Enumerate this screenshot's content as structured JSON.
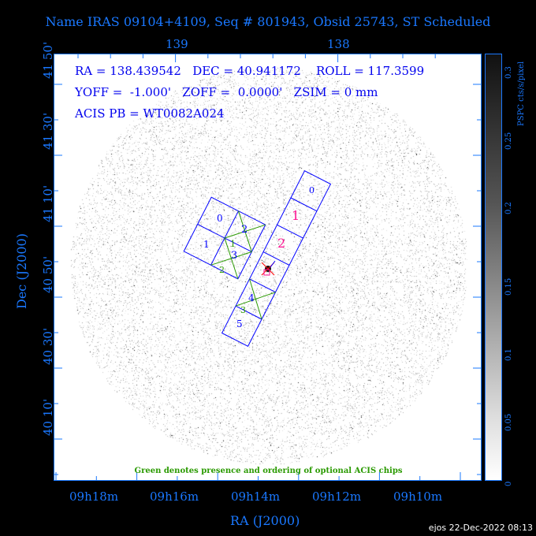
{
  "title": "Name IRAS 09104+4109, Seq # 801943, Obsid 25743, ST Scheduled",
  "info": {
    "line1": "RA = 138.439542   DEC = 40.941172    ROLL = 117.3599",
    "line2": "YOFF =  -1.000'   ZOFF =  0.0000'   ZSIM = 0 mm",
    "line3": "ACIS PB = WT0082A024"
  },
  "top_axis_labels": [
    "139",
    "138"
  ],
  "bottom_axis_labels": [
    "09h18m",
    "09h16m",
    "09h14m",
    "09h12m",
    "09h10m"
  ],
  "left_axis_labels": [
    "41 50'",
    "41 30'",
    "41 10'",
    "40 50'",
    "40 30'",
    "40 10'"
  ],
  "xlabel": "RA (J2000)",
  "ylabel": "Dec (J2000)",
  "colorbar": {
    "label": "PSPC cts/s/pixel",
    "ticks": [
      "0",
      "0.05",
      "0.1",
      "0.15",
      "0.2",
      "0.25",
      "0.3"
    ]
  },
  "chips": {
    "acis_i": [
      "0",
      "1",
      "2",
      "3"
    ],
    "acis_i_optional": [
      "1",
      "2"
    ],
    "acis_s": [
      "0",
      "1",
      "2",
      "",
      "4",
      "5"
    ],
    "acis_s_optional": [
      "3"
    ],
    "colors": {
      "chip_outline": "#0000ff",
      "optional": "#2a9a00",
      "highlight": "#ff1493",
      "target": "#ff0000"
    }
  },
  "note": "Green denotes presence and ordering of optional ACIS chips",
  "footer": "ejos 22-Dec-2022 08:13"
}
